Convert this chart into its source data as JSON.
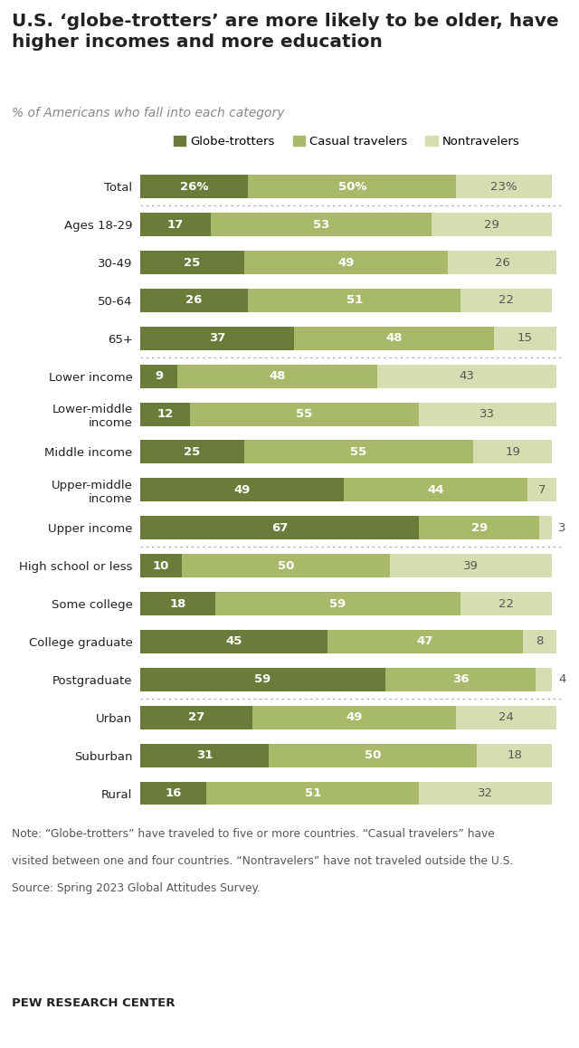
{
  "title": "U.S. ‘globe-trotters’ are more likely to be older, have\nhigher incomes and more education",
  "subtitle": "% of Americans who fall into each category",
  "legend_labels": [
    "Globe-trotters",
    "Casual travelers",
    "Nontravelers"
  ],
  "colors": [
    "#6b7c3a",
    "#a8b96a",
    "#d6ddb0"
  ],
  "categories": [
    "Total",
    "Ages 18-29",
    "30-49",
    "50-64",
    "65+",
    "Lower income",
    "Lower-middle\nincome",
    "Middle income",
    "Upper-middle\nincome",
    "Upper income",
    "High school or less",
    "Some college",
    "College graduate",
    "Postgraduate",
    "Urban",
    "Suburban",
    "Rural"
  ],
  "globe_trotters": [
    26,
    17,
    25,
    26,
    37,
    9,
    12,
    25,
    49,
    67,
    10,
    18,
    45,
    59,
    27,
    31,
    16
  ],
  "casual_travelers": [
    50,
    53,
    49,
    51,
    48,
    48,
    55,
    55,
    44,
    29,
    50,
    59,
    47,
    36,
    49,
    50,
    51
  ],
  "nontravelers": [
    23,
    29,
    26,
    22,
    15,
    43,
    33,
    19,
    7,
    3,
    39,
    22,
    8,
    4,
    24,
    18,
    32
  ],
  "separator_after_indices": [
    0,
    4,
    9,
    13
  ],
  "note_line1": "Note: “Globe-trotters” have traveled to five or more countries. “Casual travelers” have",
  "note_line2": "visited between one and four countries. “Nontravelers” have not traveled outside the U.S.",
  "note_line3": "Source: Spring 2023 Global Attitudes Survey.",
  "source": "PEW RESEARCH CENTER",
  "background_color": "#ffffff",
  "bar_height": 0.62,
  "title_fontsize": 14.5,
  "subtitle_fontsize": 10,
  "label_fontsize": 9.5,
  "bar_label_fontsize": 9.5,
  "note_fontsize": 8.8,
  "top_line_color": "#333333",
  "bottom_line_color": "#bbbbbb",
  "separator_color": "#aaaaaa",
  "text_color_dark": "#222222",
  "text_color_mid": "#888888",
  "text_color_light": "#555555",
  "white": "#ffffff"
}
